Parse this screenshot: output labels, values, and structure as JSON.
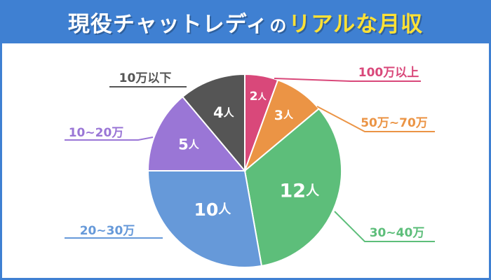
{
  "header": {
    "title_main": "現役チャットレディ",
    "title_no": "の",
    "title_accent": "リアルな月収"
  },
  "colors": {
    "banner": "#3f80d2",
    "accent_text": "#ffe135"
  },
  "chart_data": {
    "type": "pie",
    "unit": "人",
    "slices": [
      {
        "label": "100万以上",
        "value": 2,
        "color": "#d9487a"
      },
      {
        "label": "50万~70万",
        "value": 3,
        "color": "#eb9445"
      },
      {
        "label": "30~40万",
        "value": 12,
        "color": "#5dbe7a"
      },
      {
        "label": "20~30万",
        "value": 10,
        "color": "#6699d9"
      },
      {
        "label": "10~20万",
        "value": 5,
        "color": "#9a76d6"
      },
      {
        "label": "10万以下",
        "value": 4,
        "color": "#555555"
      }
    ]
  }
}
